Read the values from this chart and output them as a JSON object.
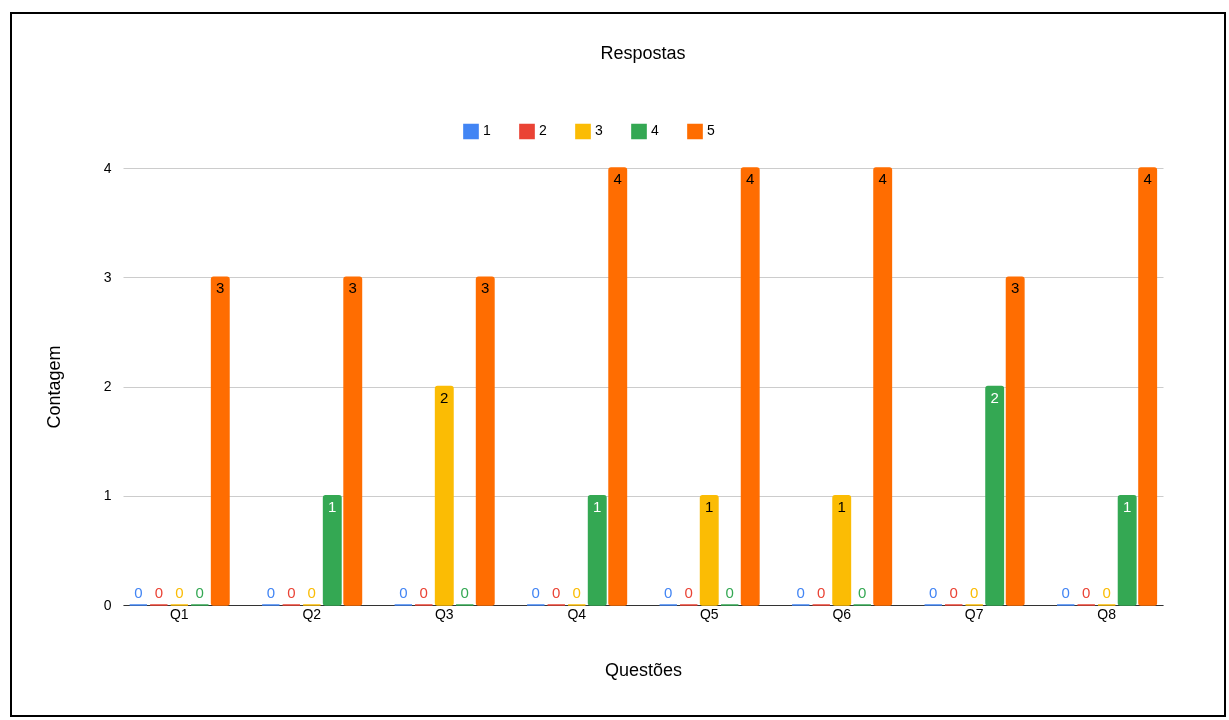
{
  "chart_data": {
    "type": "bar",
    "title": "Respostas",
    "xlabel": "Questões",
    "ylabel": "Contagem",
    "categories": [
      "Q1",
      "Q2",
      "Q3",
      "Q4",
      "Q5",
      "Q6",
      "Q7",
      "Q8"
    ],
    "series": [
      {
        "name": "1",
        "color": "#4285f4",
        "values": [
          0,
          0,
          0,
          0,
          0,
          0,
          0,
          0
        ]
      },
      {
        "name": "2",
        "color": "#ea4335",
        "values": [
          0,
          0,
          0,
          0,
          0,
          0,
          0,
          0
        ]
      },
      {
        "name": "3",
        "color": "#fbbc04",
        "values": [
          0,
          0,
          2,
          0,
          1,
          1,
          0,
          0
        ]
      },
      {
        "name": "4",
        "color": "#34a853",
        "values": [
          0,
          1,
          0,
          1,
          0,
          0,
          2,
          1
        ]
      },
      {
        "name": "5",
        "color": "#ff6d01",
        "values": [
          3,
          3,
          3,
          4,
          4,
          4,
          3,
          4
        ]
      }
    ],
    "ylim": [
      0,
      4
    ],
    "yticks": [
      0,
      1,
      2,
      3,
      4
    ],
    "grid": "y",
    "legend": "top",
    "data_labels": true
  }
}
